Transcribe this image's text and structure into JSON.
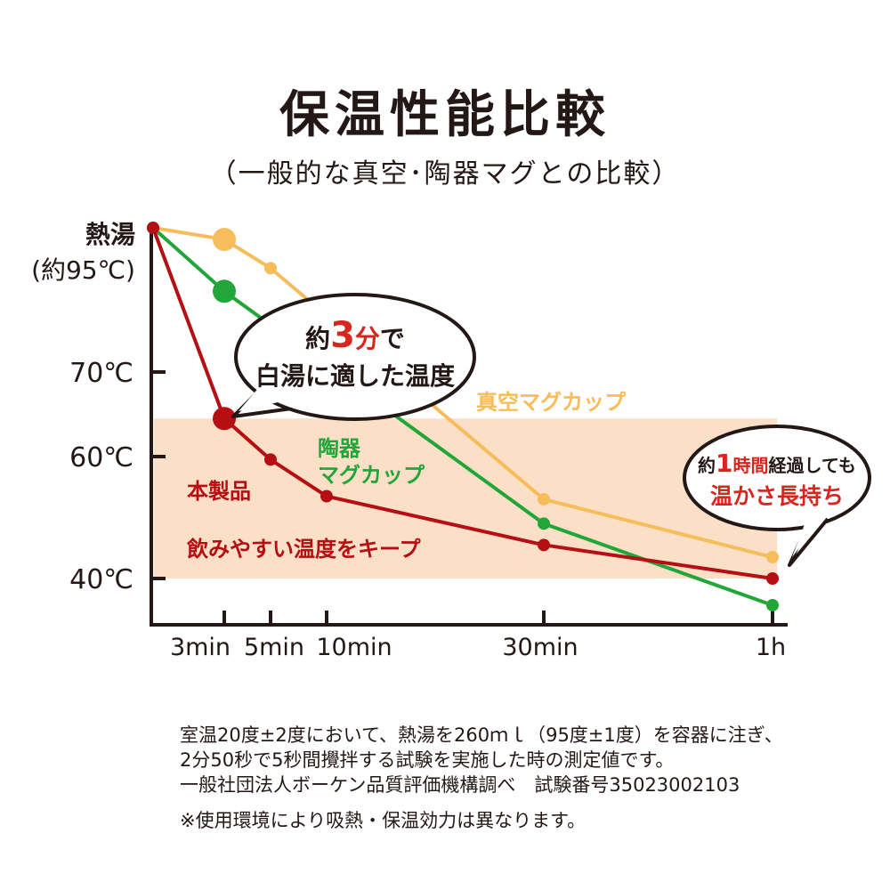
{
  "title": "保温性能比較",
  "subtitle": "（一般的な真空･陶器マグとの比較）",
  "chart_data": {
    "type": "line",
    "x": [
      0,
      3,
      5,
      10,
      30,
      60
    ],
    "x_tick_labels": [
      "3min",
      "5min",
      "10min",
      "30min",
      "1h"
    ],
    "x_tick_values": [
      3,
      5,
      10,
      30,
      60
    ],
    "y_tick_labels": [
      {
        "value": 95,
        "line1": "熱湯",
        "line2": "(約95℃)"
      },
      {
        "value": 70,
        "line1": "70℃"
      },
      {
        "value": 60,
        "line1": "60℃"
      },
      {
        "value": 40,
        "line1": "40℃"
      }
    ],
    "highlight_band": {
      "from": 40,
      "to": 64.5,
      "color": "#fbdfc6",
      "label": "飲みやすい温度をキープ"
    },
    "series": [
      {
        "name": "真空マグカップ",
        "color": "#f6bd5a",
        "values": [
          95,
          93,
          88,
          null,
          53,
          43.5
        ],
        "highlight_index": 1
      },
      {
        "name": "陶器\nマグカップ",
        "name_line1": "陶器",
        "name_line2": "マグカップ",
        "color": "#22a639",
        "values": [
          95,
          84,
          null,
          null,
          49,
          35
        ],
        "highlight_index": 1
      },
      {
        "name": "本製品",
        "color": "#b50f14",
        "values": [
          95,
          64.5,
          59.5,
          53.5,
          45.5,
          40
        ],
        "highlight_index": 1
      }
    ],
    "callout_left": {
      "pre": "約",
      "num": "3",
      "unit": "分",
      "post": "で",
      "line2": "白湯に適した温度"
    },
    "callout_right": {
      "pre": "約",
      "num": "1",
      "mid": "時間",
      "post": "経過しても",
      "line2": "温かさ長持ち"
    }
  },
  "notes": {
    "line1": "室温20度±2度において、熱湯を260ｍｌ（95度±1度）を容器に注ぎ、",
    "line2": "2分50秒で5秒間攪拌する試験を実施した時の測定値です。",
    "line3": "一般社団法人ボーケン品質評価機構調べ　試験番号35023002103",
    "caution": "※使用環境により吸熱・保温効力は異なります。"
  }
}
